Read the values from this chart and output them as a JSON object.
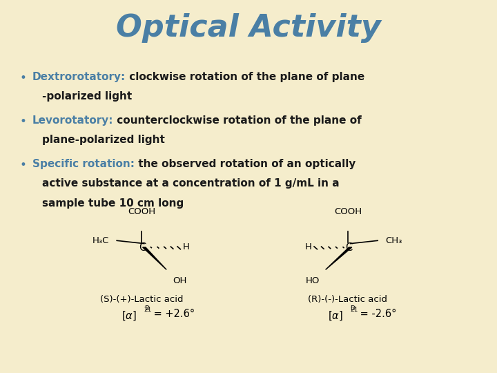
{
  "background_color": "#f5edcc",
  "title": "Optical Activity",
  "title_color": "#4a7fa5",
  "title_fontsize": 32,
  "bullet_color": "#4a7fa5",
  "text_color": "#1a1a1a",
  "keyword_fontsize": 11,
  "body_fontsize": 11,
  "bullet1_keyword": "Dextrorotatory:",
  "bullet1_line1": " clockwise rotation of the plane of plane",
  "bullet1_line2": "-polarized light",
  "bullet2_keyword": "Levorotatory:",
  "bullet2_line1": " counterclockwise rotation of the plane of",
  "bullet2_line2": "plane-polarized light",
  "bullet3_keyword": "Specific rotation:",
  "bullet3_line1": " the observed rotation of an optically",
  "bullet3_line2": "active substance at a concentration of 1 g/mL in a",
  "bullet3_line3": "sample tube 10 cm long",
  "mol_label_left": "(S)-(+)-Lactic acid",
  "mol_label_right": "(R)-(-)-Lactic acid",
  "mol_fontsize": 9.5
}
